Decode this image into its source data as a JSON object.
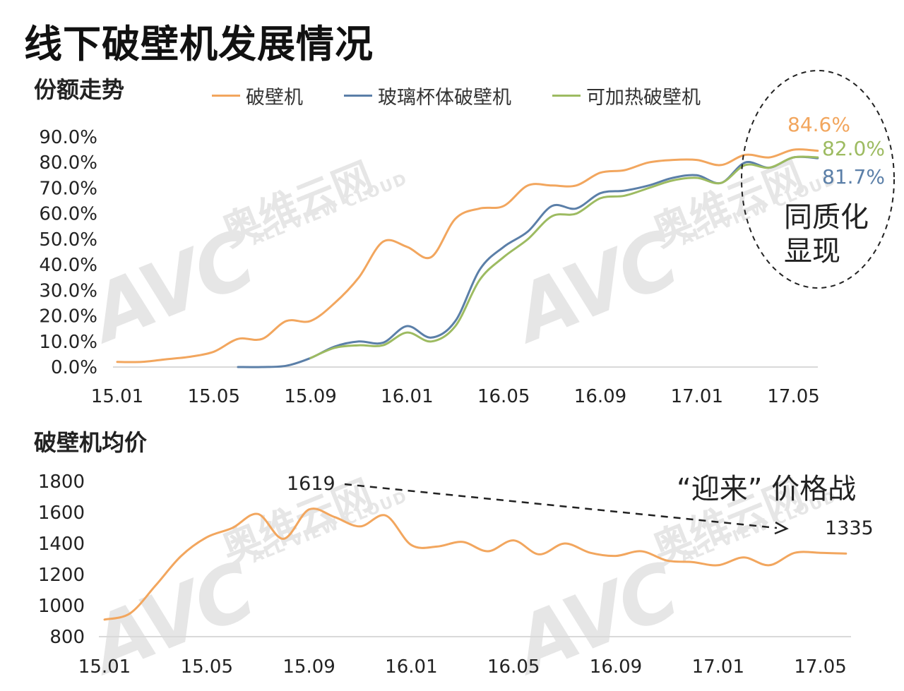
{
  "page": {
    "title": "线下破壁机发展情况"
  },
  "share_section": {
    "title": "份额走势",
    "homogenization_note": "同质化显现",
    "end_labels": {
      "blender": "84.6%",
      "heated": "82.0%",
      "glass": "81.7%"
    }
  },
  "price_section": {
    "title": "破壁机均价",
    "price_war_note": "“迎来” 价格战",
    "peak_label": "1619",
    "end_label": "1335"
  },
  "watermark": {
    "logo": "AVC",
    "brand": "奥维云网",
    "sub": "ALL VIEW CLOUD"
  },
  "colors": {
    "orange": "#F2A65E",
    "blue": "#5B7FA8",
    "green": "#9DBB61",
    "axis": "#D9D9D9"
  },
  "chart_data": [
    {
      "type": "line",
      "title": "份额走势",
      "x_ticks": [
        "15.01",
        "15.05",
        "15.09",
        "16.01",
        "16.05",
        "16.09",
        "17.01",
        "17.05"
      ],
      "y_ticks": [
        "0.0%",
        "10.0%",
        "20.0%",
        "30.0%",
        "40.0%",
        "50.0%",
        "60.0%",
        "70.0%",
        "80.0%",
        "90.0%"
      ],
      "ylim": [
        0,
        90
      ],
      "legend_position": "top",
      "series": [
        {
          "name": "破壁机",
          "color": "#F2A65E",
          "points": [
            [
              "15.01",
              2
            ],
            [
              "15.02",
              2
            ],
            [
              "15.03",
              3
            ],
            [
              "15.04",
              4
            ],
            [
              "15.05",
              6
            ],
            [
              "15.06",
              11
            ],
            [
              "15.07",
              11
            ],
            [
              "15.08",
              18
            ],
            [
              "15.09",
              18
            ],
            [
              "15.10",
              25
            ],
            [
              "15.11",
              35
            ],
            [
              "15.12",
              49
            ],
            [
              "16.01",
              47
            ],
            [
              "16.02",
              43
            ],
            [
              "16.03",
              58
            ],
            [
              "16.04",
              62
            ],
            [
              "16.05",
              63
            ],
            [
              "16.06",
              71
            ],
            [
              "16.07",
              71
            ],
            [
              "16.08",
              71
            ],
            [
              "16.09",
              76
            ],
            [
              "16.10",
              77
            ],
            [
              "16.11",
              80
            ],
            [
              "16.12",
              81
            ],
            [
              "17.01",
              81
            ],
            [
              "17.02",
              79
            ],
            [
              "17.03",
              83
            ],
            [
              "17.04",
              82
            ],
            [
              "17.05",
              85
            ],
            [
              "17.06",
              84.6
            ]
          ]
        },
        {
          "name": "玻璃杯体破壁机",
          "color": "#5B7FA8",
          "points": [
            [
              "15.06",
              0
            ],
            [
              "15.07",
              0
            ],
            [
              "15.08",
              0.5
            ],
            [
              "15.09",
              3.5
            ],
            [
              "15.10",
              8
            ],
            [
              "15.11",
              10
            ],
            [
              "15.12",
              9.5
            ],
            [
              "16.01",
              16
            ],
            [
              "16.02",
              11.5
            ],
            [
              "16.03",
              18
            ],
            [
              "16.04",
              38
            ],
            [
              "16.05",
              47
            ],
            [
              "16.06",
              53
            ],
            [
              "16.07",
              63
            ],
            [
              "16.08",
              62
            ],
            [
              "16.09",
              68
            ],
            [
              "16.10",
              69
            ],
            [
              "16.11",
              71
            ],
            [
              "16.12",
              74
            ],
            [
              "17.01",
              75
            ],
            [
              "17.02",
              72
            ],
            [
              "17.03",
              80
            ],
            [
              "17.04",
              78
            ],
            [
              "17.05",
              82
            ],
            [
              "17.06",
              81.7
            ]
          ]
        },
        {
          "name": "可加热破壁机",
          "color": "#9DBB61",
          "points": [
            [
              "15.09",
              3.5
            ],
            [
              "15.10",
              7.5
            ],
            [
              "15.11",
              8.5
            ],
            [
              "15.12",
              8.5
            ],
            [
              "16.01",
              13.5
            ],
            [
              "16.02",
              10
            ],
            [
              "16.03",
              16
            ],
            [
              "16.04",
              34
            ],
            [
              "16.05",
              43
            ],
            [
              "16.06",
              50
            ],
            [
              "16.07",
              59
            ],
            [
              "16.08",
              60
            ],
            [
              "16.09",
              66
            ],
            [
              "16.10",
              67
            ],
            [
              "16.11",
              70
            ],
            [
              "16.12",
              73
            ],
            [
              "17.01",
              74
            ],
            [
              "17.02",
              72
            ],
            [
              "17.03",
              79
            ],
            [
              "17.04",
              78
            ],
            [
              "17.05",
              82
            ],
            [
              "17.06",
              82
            ]
          ]
        }
      ]
    },
    {
      "type": "line",
      "title": "破壁机均价",
      "x_ticks": [
        "15.01",
        "15.05",
        "15.09",
        "16.01",
        "16.05",
        "16.09",
        "17.01",
        "17.05"
      ],
      "y_ticks": [
        "800",
        "1000",
        "1200",
        "1400",
        "1600",
        "1800"
      ],
      "ylim": [
        800,
        1800
      ],
      "series": [
        {
          "name": "破壁机均价",
          "color": "#F2A65E",
          "points": [
            [
              "15.01",
              910
            ],
            [
              "15.02",
              950
            ],
            [
              "15.03",
              1130
            ],
            [
              "15.04",
              1320
            ],
            [
              "15.05",
              1440
            ],
            [
              "15.06",
              1500
            ],
            [
              "15.07",
              1590
            ],
            [
              "15.08",
              1430
            ],
            [
              "15.09",
              1619
            ],
            [
              "15.10",
              1570
            ],
            [
              "15.11",
              1510
            ],
            [
              "15.12",
              1580
            ],
            [
              "16.01",
              1390
            ],
            [
              "16.02",
              1380
            ],
            [
              "16.03",
              1410
            ],
            [
              "16.04",
              1350
            ],
            [
              "16.05",
              1420
            ],
            [
              "16.06",
              1330
            ],
            [
              "16.07",
              1400
            ],
            [
              "16.08",
              1340
            ],
            [
              "16.09",
              1320
            ],
            [
              "16.10",
              1350
            ],
            [
              "16.11",
              1290
            ],
            [
              "16.12",
              1280
            ],
            [
              "17.01",
              1260
            ],
            [
              "17.02",
              1310
            ],
            [
              "17.03",
              1260
            ],
            [
              "17.04",
              1340
            ],
            [
              "17.05",
              1340
            ],
            [
              "17.06",
              1335
            ]
          ]
        }
      ]
    }
  ]
}
